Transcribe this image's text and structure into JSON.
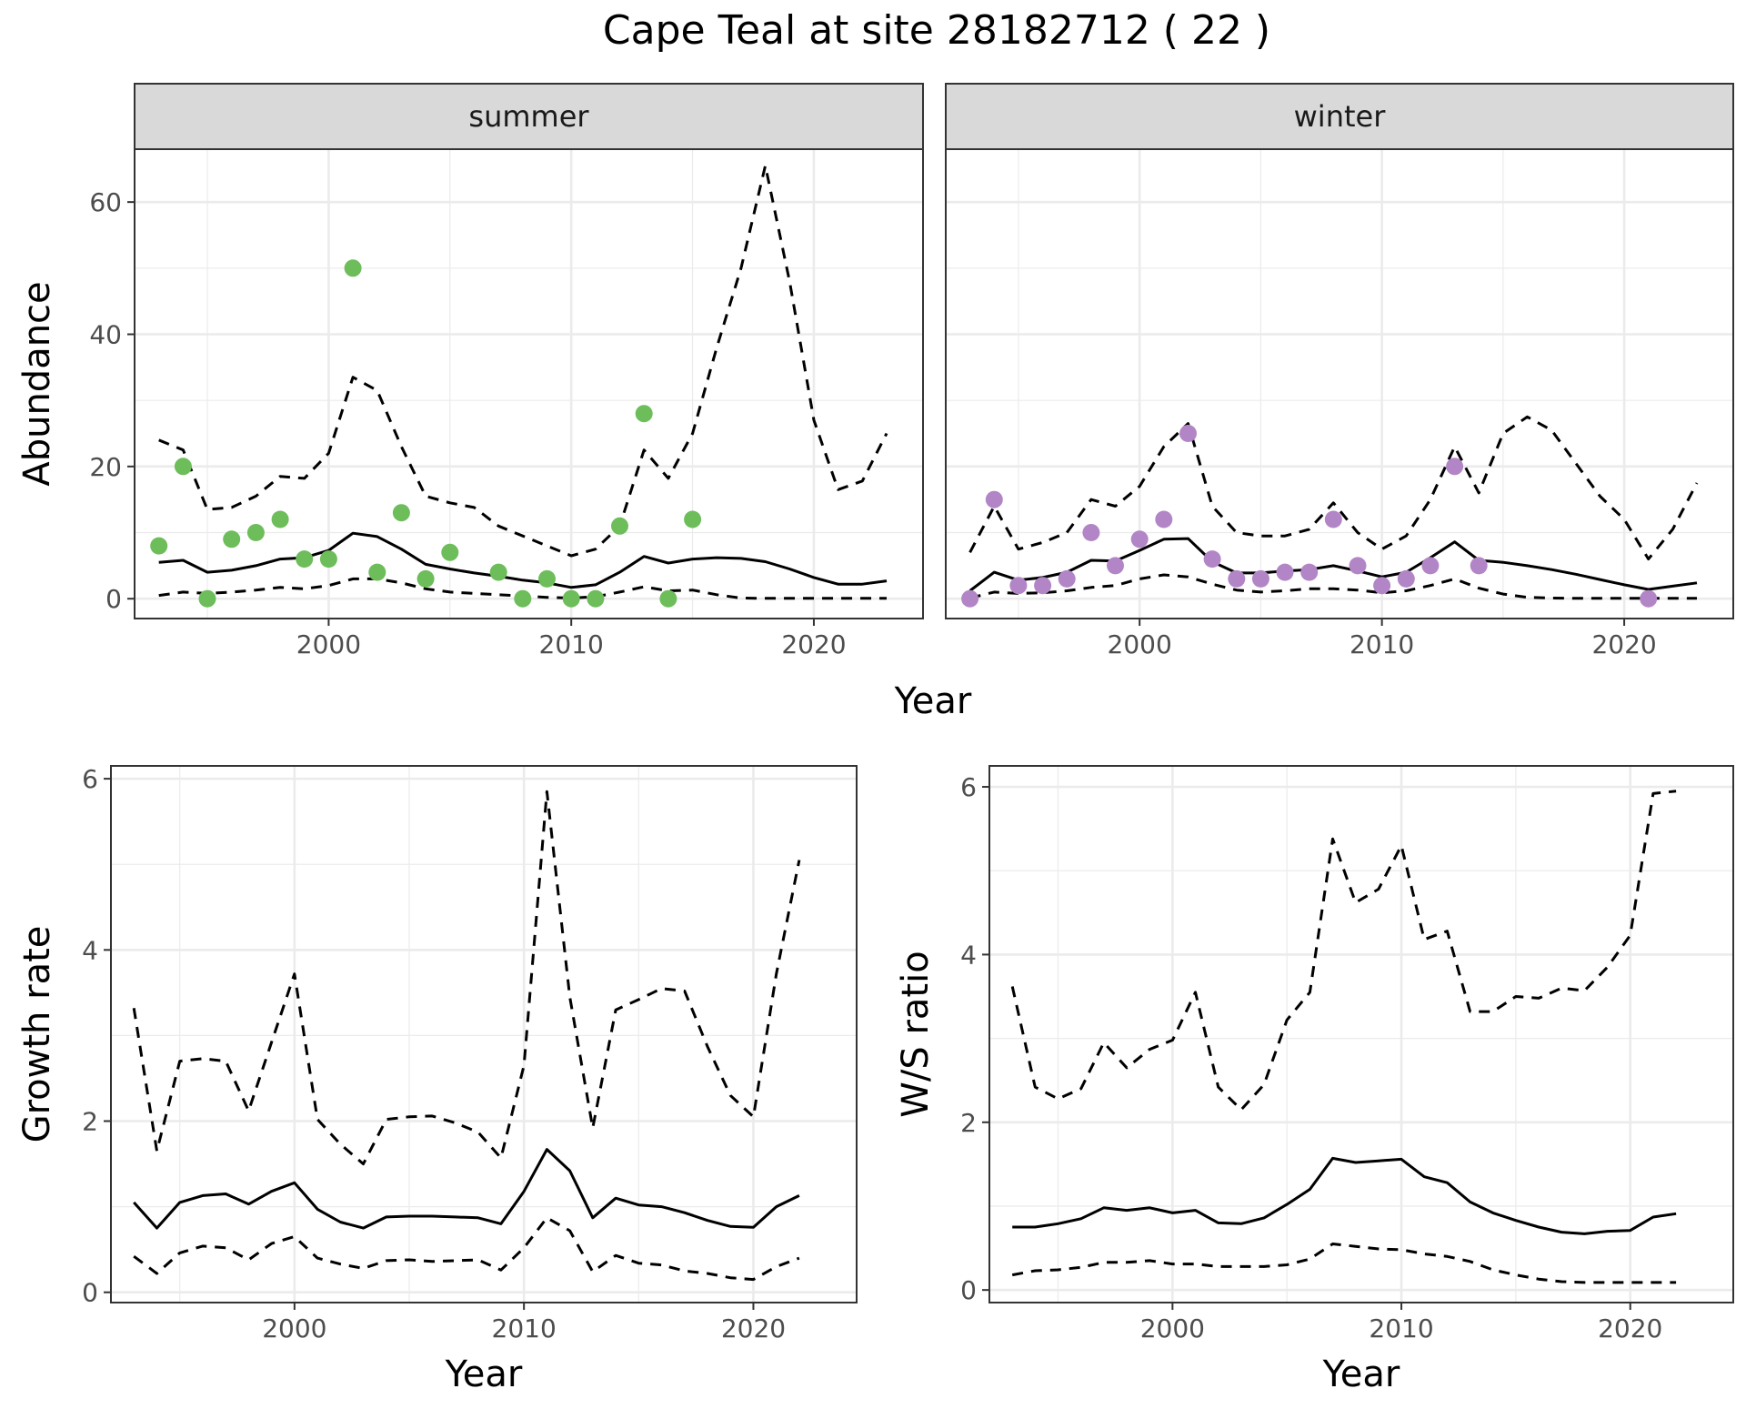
{
  "figure": {
    "title": "Cape Teal at site 28182712 ( 22 )"
  },
  "style": {
    "summer_point_color": "#6dbd5b",
    "winter_point_color": "#b286c6",
    "line_color": "#000000",
    "strip_fill": "#d9d9d9",
    "grid_color": "#ebebeb",
    "frame_color": "#333333"
  },
  "chart_data": [
    {
      "id": "abundance-summer",
      "type": "line",
      "facet": "summer",
      "xlabel": "",
      "ylabel": "Abundance",
      "xlim": [
        1992,
        2024.5
      ],
      "ylim": [
        -3,
        68
      ],
      "xticks": [
        2000,
        2010,
        2020
      ],
      "yticks": [
        0,
        20,
        40,
        60
      ],
      "x": [
        1993,
        1994,
        1995,
        1996,
        1997,
        1998,
        1999,
        2000,
        2001,
        2002,
        2003,
        2004,
        2005,
        2006,
        2007,
        2008,
        2009,
        2010,
        2011,
        2012,
        2013,
        2014,
        2015,
        2016,
        2017,
        2018,
        2019,
        2020,
        2021,
        2022,
        2023
      ],
      "series": [
        {
          "role": "mean",
          "values": [
            5.5,
            5.8,
            4.0,
            4.3,
            5.0,
            6.0,
            6.2,
            7.3,
            9.9,
            9.4,
            7.5,
            5.2,
            4.5,
            3.9,
            3.4,
            2.8,
            2.4,
            1.7,
            2.1,
            4.0,
            6.4,
            5.4,
            6.0,
            6.2,
            6.1,
            5.6,
            4.5,
            3.2,
            2.2,
            2.2,
            2.7
          ]
        },
        {
          "role": "upper",
          "values": [
            24,
            22.5,
            13.5,
            13.8,
            15.5,
            18.5,
            18.2,
            22,
            33.5,
            31.5,
            23,
            15.5,
            14.5,
            13.8,
            11,
            9.5,
            8,
            6.5,
            7.5,
            11,
            22.5,
            18.2,
            25,
            38,
            50,
            65.5,
            48,
            27,
            16.5,
            17.8,
            25
          ]
        },
        {
          "role": "lower",
          "values": [
            0.5,
            1.0,
            0.8,
            1.0,
            1.3,
            1.7,
            1.5,
            2.0,
            3.0,
            3.0,
            2.4,
            1.5,
            1.0,
            0.8,
            0.6,
            0.4,
            0.2,
            0.1,
            0.3,
            1.0,
            1.8,
            1.2,
            1.3,
            0.6,
            0.1,
            0.05,
            0.05,
            0.05,
            0.05,
            0.05,
            0.05
          ]
        }
      ],
      "points": {
        "x": [
          1993,
          1994,
          1995,
          1996,
          1997,
          1998,
          1999,
          2000,
          2001,
          2002,
          2003,
          2004,
          2005,
          2007,
          2008,
          2009,
          2010,
          2011,
          2012,
          2013,
          2014,
          2015
        ],
        "y": [
          8,
          20,
          0,
          9,
          10,
          12,
          6,
          6,
          50,
          4,
          13,
          3,
          7,
          4,
          0,
          3,
          0,
          0,
          11,
          28,
          0,
          12
        ]
      }
    },
    {
      "id": "abundance-winter",
      "type": "line",
      "facet": "winter",
      "xlabel": "",
      "ylabel": "",
      "xlim": [
        1992,
        2024.5
      ],
      "ylim": [
        -3,
        68
      ],
      "xticks": [
        2000,
        2010,
        2020
      ],
      "yticks": [
        0,
        20,
        40,
        60
      ],
      "x": [
        1993,
        1994,
        1995,
        1996,
        1997,
        1998,
        1999,
        2000,
        2001,
        2002,
        2003,
        2004,
        2005,
        2006,
        2007,
        2008,
        2009,
        2010,
        2011,
        2012,
        2013,
        2014,
        2015,
        2016,
        2017,
        2018,
        2019,
        2020,
        2021,
        2022,
        2023
      ],
      "series": [
        {
          "role": "mean",
          "values": [
            1.2,
            4.0,
            2.8,
            3.2,
            4.0,
            5.8,
            5.7,
            7.3,
            9.0,
            9.1,
            5.6,
            3.9,
            3.9,
            4.2,
            4.4,
            5.0,
            4.2,
            3.3,
            4.0,
            6.2,
            8.6,
            5.8,
            5.5,
            5.0,
            4.4,
            3.7,
            2.9,
            2.1,
            1.4,
            1.9,
            2.4
          ]
        },
        {
          "role": "upper",
          "values": [
            7,
            14,
            7.5,
            8.5,
            10,
            15,
            14,
            17,
            23,
            26.5,
            14,
            10,
            9.5,
            9.5,
            10.5,
            14.5,
            10,
            7.5,
            9.5,
            15,
            23,
            16,
            25,
            27.5,
            25.5,
            20.5,
            15.5,
            12,
            6,
            10.5,
            17.5
          ]
        },
        {
          "role": "lower",
          "values": [
            0.1,
            1.0,
            0.8,
            0.9,
            1.2,
            1.7,
            2.0,
            3.0,
            3.6,
            3.3,
            2.2,
            1.3,
            1.0,
            1.2,
            1.5,
            1.5,
            1.3,
            0.9,
            1.2,
            2.0,
            3.0,
            1.6,
            0.7,
            0.2,
            0.1,
            0.05,
            0.05,
            0.05,
            0.05,
            0.05,
            0.05
          ]
        }
      ],
      "points": {
        "x": [
          1993,
          1994,
          1995,
          1996,
          1997,
          1998,
          1999,
          2000,
          2001,
          2002,
          2003,
          2004,
          2005,
          2006,
          2007,
          2008,
          2009,
          2010,
          2011,
          2012,
          2013,
          2014,
          2021
        ],
        "y": [
          0,
          15,
          2,
          2,
          3,
          10,
          5,
          9,
          12,
          25,
          6,
          3,
          3,
          4,
          4,
          12,
          5,
          2,
          3,
          5,
          20,
          5,
          0
        ]
      }
    },
    {
      "id": "growth-rate",
      "type": "line",
      "xlabel": "Year",
      "ylabel": "Growth rate",
      "xlim": [
        1992,
        2024.5
      ],
      "ylim": [
        -0.12,
        6.15
      ],
      "xticks": [
        2000,
        2010,
        2020
      ],
      "yticks": [
        0,
        2,
        4,
        6
      ],
      "x": [
        1993,
        1994,
        1995,
        1996,
        1997,
        1998,
        1999,
        2000,
        2001,
        2002,
        2003,
        2004,
        2005,
        2006,
        2007,
        2008,
        2009,
        2010,
        2011,
        2012,
        2013,
        2014,
        2015,
        2016,
        2017,
        2018,
        2019,
        2020,
        2021,
        2022
      ],
      "series": [
        {
          "role": "mean",
          "values": [
            1.05,
            0.75,
            1.05,
            1.13,
            1.15,
            1.03,
            1.18,
            1.28,
            0.97,
            0.82,
            0.75,
            0.88,
            0.89,
            0.89,
            0.88,
            0.87,
            0.8,
            1.18,
            1.67,
            1.42,
            0.87,
            1.1,
            1.02,
            1.0,
            0.93,
            0.84,
            0.77,
            0.76,
            1.0,
            1.13
          ]
        },
        {
          "role": "upper",
          "values": [
            3.32,
            1.65,
            2.7,
            2.73,
            2.7,
            2.12,
            2.92,
            3.72,
            2.02,
            1.73,
            1.5,
            2.02,
            2.05,
            2.06,
            1.98,
            1.87,
            1.57,
            2.65,
            5.85,
            3.45,
            1.92,
            3.3,
            3.42,
            3.55,
            3.52,
            2.87,
            2.3,
            2.05,
            3.72,
            5.05
          ]
        },
        {
          "role": "lower",
          "values": [
            0.42,
            0.22,
            0.46,
            0.54,
            0.52,
            0.38,
            0.57,
            0.65,
            0.4,
            0.33,
            0.28,
            0.37,
            0.38,
            0.36,
            0.37,
            0.38,
            0.26,
            0.52,
            0.87,
            0.72,
            0.24,
            0.43,
            0.34,
            0.32,
            0.25,
            0.22,
            0.17,
            0.15,
            0.3,
            0.4
          ]
        }
      ]
    },
    {
      "id": "ws-ratio",
      "type": "line",
      "xlabel": "Year",
      "ylabel": "W/S ratio",
      "xlim": [
        1992,
        2024.5
      ],
      "ylim": [
        -0.15,
        6.25
      ],
      "xticks": [
        2000,
        2010,
        2020
      ],
      "yticks": [
        0,
        2,
        4,
        6
      ],
      "x": [
        1993,
        1994,
        1995,
        1996,
        1997,
        1998,
        1999,
        2000,
        2001,
        2002,
        2003,
        2004,
        2005,
        2006,
        2007,
        2008,
        2009,
        2010,
        2011,
        2012,
        2013,
        2014,
        2015,
        2016,
        2017,
        2018,
        2019,
        2020,
        2021,
        2022
      ],
      "series": [
        {
          "role": "mean",
          "values": [
            0.75,
            0.75,
            0.79,
            0.85,
            0.98,
            0.95,
            0.98,
            0.92,
            0.95,
            0.8,
            0.79,
            0.86,
            1.02,
            1.2,
            1.57,
            1.52,
            1.54,
            1.56,
            1.35,
            1.28,
            1.05,
            0.92,
            0.83,
            0.75,
            0.69,
            0.67,
            0.7,
            0.71,
            0.87,
            0.91
          ]
        },
        {
          "role": "upper",
          "values": [
            3.62,
            2.42,
            2.28,
            2.4,
            2.95,
            2.65,
            2.87,
            2.98,
            3.55,
            2.42,
            2.15,
            2.45,
            3.22,
            3.55,
            5.38,
            4.62,
            4.78,
            5.3,
            4.18,
            4.28,
            3.32,
            3.32,
            3.5,
            3.48,
            3.6,
            3.57,
            3.85,
            4.23,
            5.92,
            5.95
          ]
        },
        {
          "role": "lower",
          "values": [
            0.18,
            0.23,
            0.24,
            0.27,
            0.33,
            0.33,
            0.35,
            0.31,
            0.31,
            0.28,
            0.28,
            0.28,
            0.3,
            0.37,
            0.55,
            0.52,
            0.49,
            0.48,
            0.43,
            0.4,
            0.34,
            0.24,
            0.18,
            0.13,
            0.1,
            0.09,
            0.09,
            0.09,
            0.09,
            0.09
          ]
        }
      ]
    }
  ]
}
